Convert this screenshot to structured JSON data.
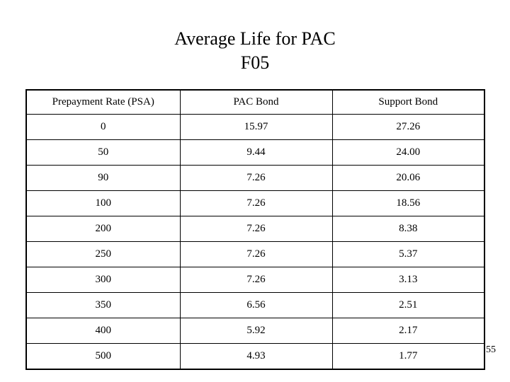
{
  "slide": {
    "title_line1": "Average Life for PAC",
    "title_line2": "F05",
    "page_number": "55"
  },
  "table": {
    "headers": [
      "Prepayment Rate (PSA)",
      "PAC Bond",
      "Support Bond"
    ],
    "rows": [
      {
        "psa": "0",
        "pac": "15.97",
        "support": "27.26"
      },
      {
        "psa": "50",
        "pac": "9.44",
        "support": "24.00"
      },
      {
        "psa": "90",
        "pac": "7.26",
        "support": "20.06"
      },
      {
        "psa": "100",
        "pac": "7.26",
        "support": "18.56"
      },
      {
        "psa": "200",
        "pac": "7.26",
        "support": "8.38"
      },
      {
        "psa": "250",
        "pac": "7.26",
        "support": "5.37"
      },
      {
        "psa": "300",
        "pac": "7.26",
        "support": "3.13"
      },
      {
        "psa": "350",
        "pac": "6.56",
        "support": "2.51"
      },
      {
        "psa": "400",
        "pac": "5.92",
        "support": "2.17"
      },
      {
        "psa": "500",
        "pac": "4.93",
        "support": "1.77"
      }
    ]
  }
}
